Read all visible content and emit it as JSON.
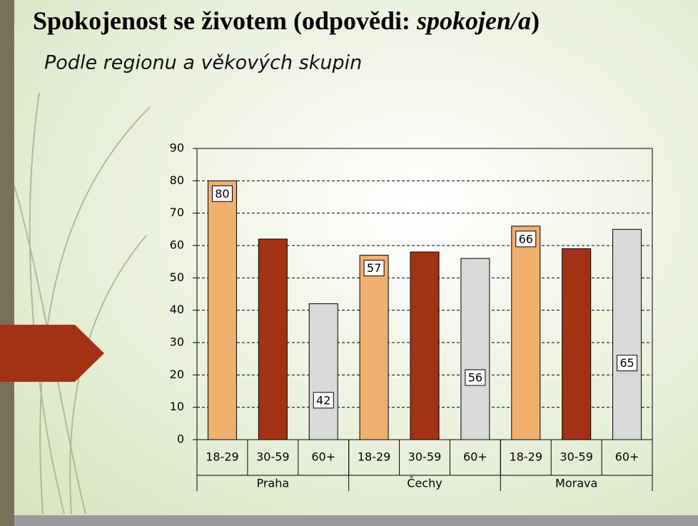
{
  "chart_data": {
    "type": "grouped-bar",
    "title_parts": [
      "Spokojenost se životem (odpovědi: ",
      "spokojen/a",
      ")"
    ],
    "subtitle": "Podle regionu a věkových skupin",
    "groups": [
      {
        "name": "Praha",
        "categories": [
          "18-29",
          "30-59",
          "60+"
        ],
        "values": [
          80,
          62,
          42
        ]
      },
      {
        "name": "Čechy",
        "categories": [
          "18-29",
          "30-59",
          "60+"
        ],
        "values": [
          57,
          58,
          56
        ]
      },
      {
        "name": "Morava",
        "categories": [
          "18-29",
          "30-59",
          "60+"
        ],
        "values": [
          66,
          59,
          65
        ]
      }
    ],
    "colors": [
      "#f0b070",
      "#a33214",
      "#d9d9d9"
    ],
    "value_labels_shown": [
      true,
      false,
      true
    ],
    "ylim": [
      0,
      90
    ],
    "yticks": [
      0,
      10,
      20,
      30,
      40,
      50,
      60,
      70,
      80,
      90
    ],
    "grid": true
  }
}
